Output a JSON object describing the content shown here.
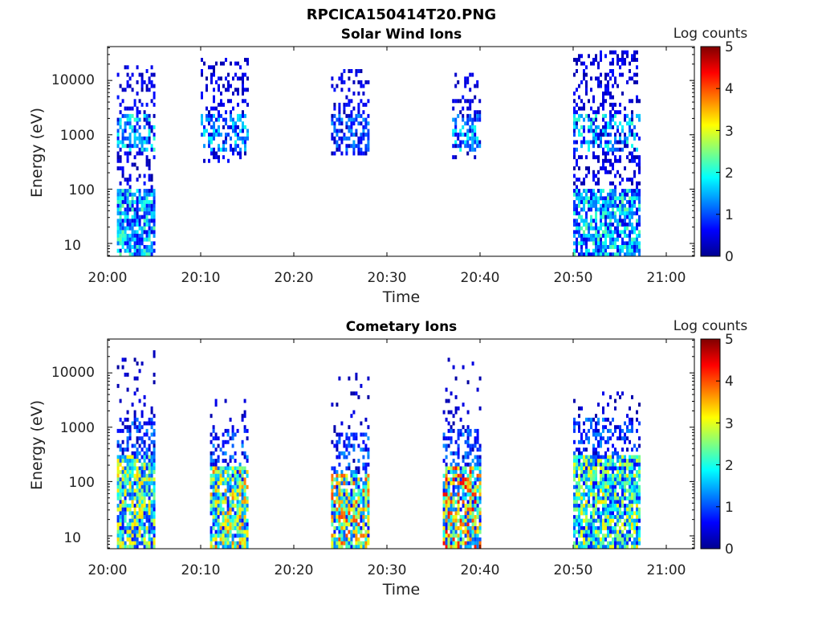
{
  "figure_title": "RPCICA150414T20.PNG",
  "colorbar": {
    "label": "Log counts",
    "range": [
      0,
      5
    ],
    "ticks": [
      "0",
      "1",
      "2",
      "3",
      "4",
      "5"
    ]
  },
  "chart_data": [
    {
      "type": "heatmap",
      "title": "Solar Wind Ions",
      "xlabel": "Time",
      "ylabel": "Energy (eV)",
      "yscale": "log",
      "ylim": [
        5.8,
        42000
      ],
      "xlim_minutes": [
        0,
        63
      ],
      "xticks": [
        "20:00",
        "20:10",
        "20:20",
        "20:30",
        "20:40",
        "20:50",
        "21:00"
      ],
      "yticks": [
        "10",
        "100",
        "1000",
        "10000"
      ],
      "bursts": [
        {
          "start": "20:01",
          "end": "20:04",
          "elo": 6,
          "ehi": 20000,
          "peak_log_counts": 2.0,
          "lowE_top": 100
        },
        {
          "start": "20:10",
          "end": "20:14",
          "elo": 330,
          "ehi": 28000,
          "peak_log_counts": 1.8,
          "lowE_top": 0
        },
        {
          "start": "20:24",
          "end": "20:27",
          "elo": 400,
          "ehi": 15000,
          "peak_log_counts": 1.2,
          "lowE_top": 0
        },
        {
          "start": "20:37",
          "end": "20:39",
          "elo": 380,
          "ehi": 14000,
          "peak_log_counts": 1.8,
          "lowE_top": 0
        },
        {
          "start": "20:50",
          "end": "20:56",
          "elo": 6,
          "ehi": 34000,
          "peak_log_counts": 2.0,
          "lowE_top": 100
        }
      ]
    },
    {
      "type": "heatmap",
      "title": "Cometary Ions",
      "xlabel": "Time",
      "ylabel": "Energy (eV)",
      "yscale": "log",
      "ylim": [
        5.8,
        42000
      ],
      "xlim_minutes": [
        0,
        63
      ],
      "xticks": [
        "20:00",
        "20:10",
        "20:20",
        "20:30",
        "20:40",
        "20:50",
        "21:00"
      ],
      "yticks": [
        "10",
        "100",
        "1000",
        "10000"
      ],
      "bursts": [
        {
          "start": "20:01",
          "end": "20:04",
          "elo": 6,
          "ehi": 26000,
          "peak_log_counts": 2.8,
          "core_top": 300
        },
        {
          "start": "20:11",
          "end": "20:14",
          "elo": 6,
          "ehi": 3700,
          "peak_log_counts": 3.2,
          "core_top": 200
        },
        {
          "start": "20:24",
          "end": "20:27",
          "elo": 6,
          "ehi": 11000,
          "peak_log_counts": 3.5,
          "core_top": 150
        },
        {
          "start": "20:36",
          "end": "20:39",
          "elo": 6,
          "ehi": 20000,
          "peak_log_counts": 3.9,
          "core_top": 200
        },
        {
          "start": "20:50",
          "end": "20:56",
          "elo": 6,
          "ehi": 4500,
          "peak_log_counts": 2.7,
          "core_top": 300
        }
      ]
    }
  ]
}
